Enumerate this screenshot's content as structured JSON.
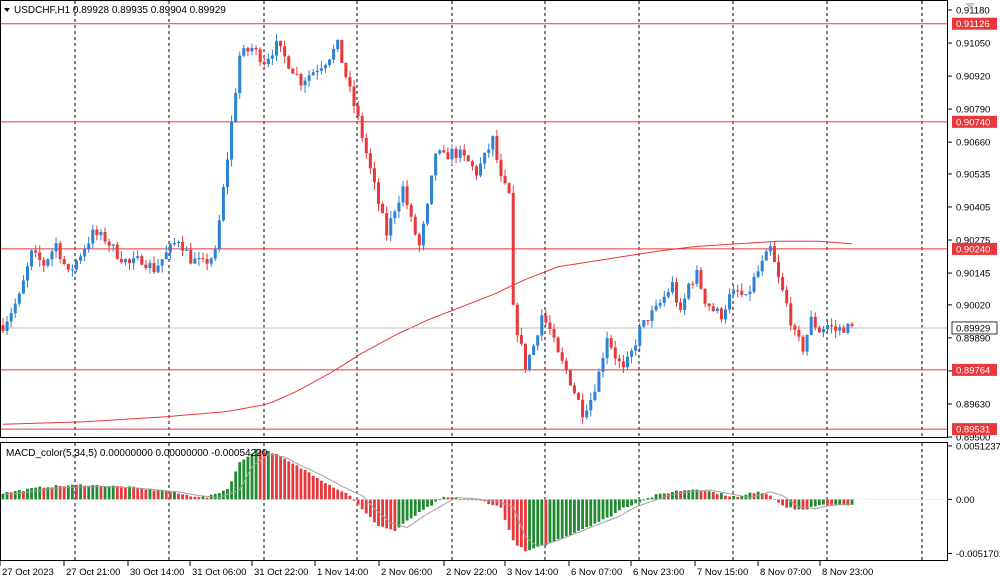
{
  "header": {
    "symbol_line": "USDCHF,H1  0.89928 0.89935 0.89904 0.89929",
    "macd_label": "MACD_color(5,34,5) 0.00000000 0.00000000 -0.00054220"
  },
  "colors": {
    "bull": "#2b82d6",
    "bear": "#e8383b",
    "hline": "#e8383b",
    "ma": "#e8383b",
    "macd_pos": "#1f8a2e",
    "macd_neg": "#e8383b",
    "signal": "#a0a0a0",
    "grid": "#000000"
  },
  "chart_data": [
    {
      "type": "candlestick",
      "symbol": "USDCHF",
      "timeframe": "H1",
      "ylim": [
        0.895,
        0.9118
      ],
      "y_ticks": [
        "0.91180",
        "0.91050",
        "0.90920",
        "0.90790",
        "0.90660",
        "0.90535",
        "0.90405",
        "0.90275",
        "0.90145",
        "0.90020",
        "0.89890",
        "0.89760",
        "0.89630",
        "0.89500"
      ],
      "y_tick_values": [
        0.9118,
        0.9105,
        0.9092,
        0.9079,
        0.9066,
        0.90535,
        0.90405,
        0.90275,
        0.90145,
        0.9002,
        0.8989,
        0.8976,
        0.8963,
        0.895
      ],
      "x_labels": [
        "27 Oct 2023",
        "27 Oct 21:00",
        "30 Oct 14:00",
        "31 Oct 06:00",
        "31 Oct 22:00",
        "1 Nov 14:00",
        "2 Nov 06:00",
        "2 Nov 22:00",
        "3 Nov 14:00",
        "6 Nov 07:00",
        "6 Nov 23:00",
        "7 Nov 15:00",
        "8 Nov 07:00",
        "8 Nov 23:00"
      ],
      "horizontal_levels": [
        {
          "value": 0.91126,
          "label": "0.91126"
        },
        {
          "value": 0.9074,
          "label": "0.90740"
        },
        {
          "value": 0.9024,
          "label": "0.90240"
        },
        {
          "value": 0.89764,
          "label": "0.89764"
        },
        {
          "value": 0.89531,
          "label": "0.89531"
        }
      ],
      "current_price": {
        "value": 0.89929,
        "label": "0.89929"
      },
      "moving_average_path": [
        [
          0,
          0.8955
        ],
        [
          20,
          0.8956
        ],
        [
          40,
          0.8958
        ],
        [
          55,
          0.896
        ],
        [
          65,
          0.8963
        ],
        [
          72,
          0.8968
        ],
        [
          80,
          0.8975
        ],
        [
          88,
          0.8983
        ],
        [
          96,
          0.899
        ],
        [
          104,
          0.8996
        ],
        [
          112,
          0.9001
        ],
        [
          120,
          0.9006
        ],
        [
          128,
          0.9012
        ],
        [
          136,
          0.9017
        ],
        [
          144,
          0.9019
        ],
        [
          152,
          0.9021
        ],
        [
          160,
          0.9023
        ],
        [
          170,
          0.9025
        ],
        [
          180,
          0.9026
        ],
        [
          190,
          0.9027
        ],
        [
          200,
          0.9027
        ],
        [
          208,
          0.9026
        ]
      ],
      "candle_path": [
        [
          0,
          0.8994
        ],
        [
          4,
          0.9005
        ],
        [
          7,
          0.9022
        ],
        [
          10,
          0.9018
        ],
        [
          13,
          0.9026
        ],
        [
          16,
          0.9014
        ],
        [
          19,
          0.9022
        ],
        [
          22,
          0.903
        ],
        [
          25,
          0.9028
        ],
        [
          28,
          0.9022
        ],
        [
          31,
          0.9018
        ],
        [
          34,
          0.902
        ],
        [
          37,
          0.9016
        ],
        [
          40,
          0.9022
        ],
        [
          43,
          0.9028
        ],
        [
          46,
          0.902
        ],
        [
          49,
          0.9018
        ],
        [
          52,
          0.9022
        ],
        [
          55,
          0.906
        ],
        [
          58,
          0.91
        ],
        [
          61,
          0.9103
        ],
        [
          64,
          0.9098
        ],
        [
          67,
          0.9104
        ],
        [
          70,
          0.9097
        ],
        [
          73,
          0.909
        ],
        [
          76,
          0.9094
        ],
        [
          79,
          0.9098
        ],
        [
          82,
          0.9104
        ],
        [
          85,
          0.9086
        ],
        [
          87,
          0.9075
        ],
        [
          90,
          0.9055
        ],
        [
          92,
          0.9042
        ],
        [
          94,
          0.903
        ],
        [
          96,
          0.904
        ],
        [
          98,
          0.9048
        ],
        [
          100,
          0.9035
        ],
        [
          102,
          0.9025
        ],
        [
          104,
          0.904
        ],
        [
          106,
          0.9062
        ],
        [
          108,
          0.906
        ],
        [
          110,
          0.9062
        ],
        [
          112,
          0.9061
        ],
        [
          114,
          0.9058
        ],
        [
          116,
          0.9054
        ],
        [
          118,
          0.906
        ],
        [
          120,
          0.9067
        ],
        [
          122,
          0.9051
        ],
        [
          124,
          0.9045
        ],
        [
          125,
          0.9
        ],
        [
          126,
          0.8992
        ],
        [
          128,
          0.8978
        ],
        [
          130,
          0.8986
        ],
        [
          132,
          0.8998
        ],
        [
          134,
          0.8992
        ],
        [
          136,
          0.8982
        ],
        [
          138,
          0.8976
        ],
        [
          140,
          0.8968
        ],
        [
          142,
          0.896
        ],
        [
          144,
          0.8965
        ],
        [
          146,
          0.8975
        ],
        [
          148,
          0.899
        ],
        [
          150,
          0.8982
        ],
        [
          152,
          0.8976
        ],
        [
          154,
          0.8983
        ],
        [
          156,
          0.8992
        ],
        [
          158,
          0.8997
        ],
        [
          160,
          0.9
        ],
        [
          162,
          0.9005
        ],
        [
          164,
          0.901
        ],
        [
          166,
          0.8998
        ],
        [
          168,
          0.901
        ],
        [
          170,
          0.9014
        ],
        [
          172,
          0.9004
        ],
        [
          174,
          0.9
        ],
        [
          176,
          0.8998
        ],
        [
          178,
          0.9005
        ],
        [
          180,
          0.9007
        ],
        [
          182,
          0.9004
        ],
        [
          184,
          0.9012
        ],
        [
          186,
          0.9018
        ],
        [
          188,
          0.9024
        ],
        [
          190,
          0.9012
        ],
        [
          192,
          0.9002
        ],
        [
          194,
          0.899
        ],
        [
          196,
          0.8985
        ],
        [
          198,
          0.8996
        ],
        [
          200,
          0.8992
        ],
        [
          202,
          0.8994
        ],
        [
          204,
          0.8992
        ],
        [
          206,
          0.8993
        ]
      ]
    },
    {
      "type": "bar",
      "title": "MACD_color(5,34,5)",
      "ylim": [
        -0.0058,
        0.0054
      ],
      "y_ticks": [
        "0.0051237",
        "0.00",
        "-0.0051701"
      ],
      "y_tick_values": [
        0.0051237,
        0.0,
        -0.0051701
      ],
      "histogram_path": [
        [
          0,
          0.0006
        ],
        [
          10,
          0.0012
        ],
        [
          20,
          0.0014
        ],
        [
          30,
          0.0012
        ],
        [
          40,
          0.0008
        ],
        [
          45,
          0.0004
        ],
        [
          50,
          0.0002
        ],
        [
          55,
          0.001
        ],
        [
          58,
          0.0035
        ],
        [
          62,
          0.0048
        ],
        [
          66,
          0.0045
        ],
        [
          70,
          0.0036
        ],
        [
          75,
          0.0026
        ],
        [
          80,
          0.0014
        ],
        [
          85,
          0.0004
        ],
        [
          88,
          -0.001
        ],
        [
          92,
          -0.0025
        ],
        [
          96,
          -0.003
        ],
        [
          100,
          -0.0018
        ],
        [
          104,
          -0.0008
        ],
        [
          108,
          0.0002
        ],
        [
          112,
          0.0001
        ],
        [
          118,
          -0.0002
        ],
        [
          122,
          -0.0008
        ],
        [
          125,
          -0.004
        ],
        [
          128,
          -0.005
        ],
        [
          132,
          -0.0045
        ],
        [
          138,
          -0.0035
        ],
        [
          142,
          -0.0028
        ],
        [
          148,
          -0.0018
        ],
        [
          152,
          -0.0008
        ],
        [
          156,
          -0.0002
        ],
        [
          160,
          0.0004
        ],
        [
          165,
          0.0008
        ],
        [
          170,
          0.001
        ],
        [
          175,
          0.0006
        ],
        [
          180,
          0.0002
        ],
        [
          185,
          0.0008
        ],
        [
          188,
          0.0004
        ],
        [
          192,
          -0.0008
        ],
        [
          196,
          -0.001
        ],
        [
          200,
          -0.0006
        ],
        [
          206,
          -0.0005
        ]
      ]
    }
  ]
}
